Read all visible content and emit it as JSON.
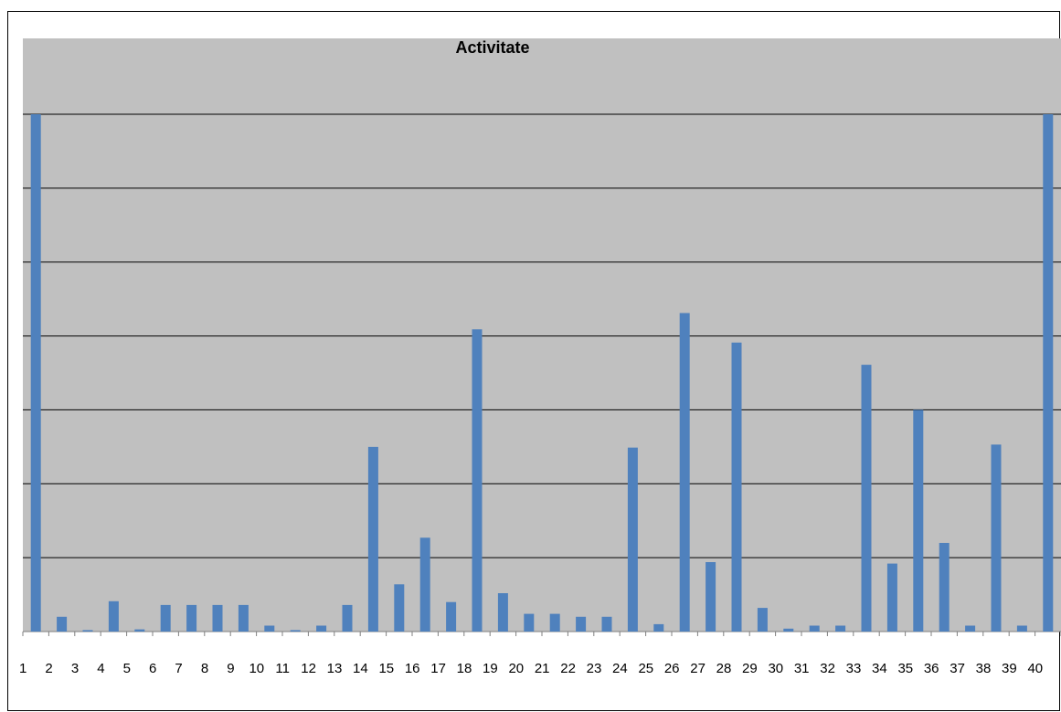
{
  "chart_data": {
    "type": "bar",
    "title": "Activitate",
    "xlabel": "",
    "ylabel": "",
    "categories": [
      "1",
      "2",
      "3",
      "4",
      "5",
      "6",
      "7",
      "8",
      "9",
      "10",
      "11",
      "12",
      "13",
      "14",
      "15",
      "16",
      "17",
      "18",
      "19",
      "20",
      "21",
      "22",
      "23",
      "24",
      "25",
      "26",
      "27",
      "28",
      "29",
      "30",
      "31",
      "32",
      "33",
      "34",
      "35",
      "36",
      "37",
      "38",
      "39",
      "40"
    ],
    "series": [
      {
        "values": [
          7,
          0.2,
          0.02,
          0.41,
          0.03,
          0.36,
          0.36,
          0.36,
          0.36,
          0.08,
          0.02,
          0.08,
          0.36,
          2.5,
          0.64,
          1.27,
          0.4,
          4.09,
          0.52,
          0.24,
          0.24,
          0.2,
          0.2,
          2.49,
          0.1,
          4.31,
          0.94,
          3.91,
          0.32,
          0.04,
          0.08,
          0.08,
          3.61,
          0.92,
          3.0,
          1.2,
          0.08,
          2.53,
          0.08,
          7
        ]
      }
    ],
    "ylim": [
      0,
      7
    ],
    "gridlines": [
      1,
      2,
      3,
      4,
      5,
      6,
      7
    ],
    "grid": true,
    "legend": "none",
    "plot_background": "#c0c0c0",
    "bar_color": "#4f81bd",
    "gridline_color": "#000000"
  }
}
